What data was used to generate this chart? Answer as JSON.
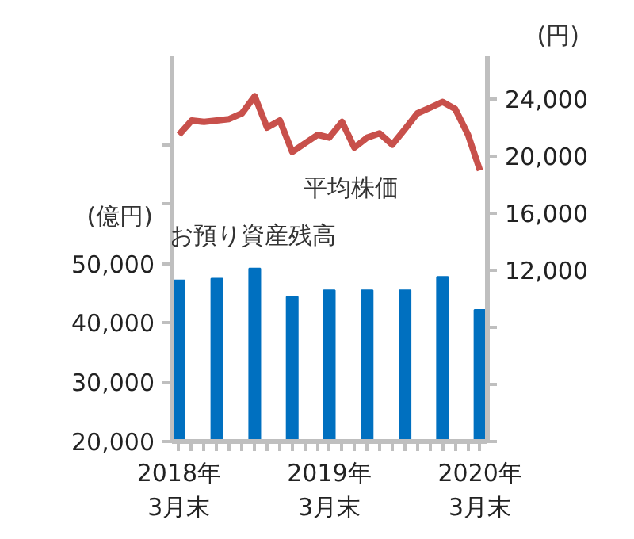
{
  "chart_data": {
    "type": "bar",
    "ylabel": "(億円)",
    "y2label": "(円)",
    "series": [
      {
        "name": "お預り資産残高",
        "color": "#0070c0",
        "x": [
          "2018-03",
          "2018-06",
          "2018-09",
          "2018-12",
          "2019-03",
          "2019-06",
          "2019-09",
          "2019-12",
          "2020-03"
        ],
        "values": [
          47200,
          47500,
          49200,
          44400,
          45500,
          45500,
          45500,
          47800,
          42200
        ]
      },
      {
        "name": "平均株価",
        "type": "line",
        "axis": "y2",
        "color": "#c8504b",
        "x": [
          "2018-03",
          "2018-04",
          "2018-05",
          "2018-06",
          "2018-07",
          "2018-08",
          "2018-09",
          "2018-10",
          "2018-11",
          "2018-12",
          "2019-01",
          "2019-02",
          "2019-03",
          "2019-04",
          "2019-05",
          "2019-06",
          "2019-07",
          "2019-08",
          "2019-09",
          "2019-10",
          "2019-11",
          "2019-12",
          "2020-01",
          "2020-02",
          "2020-03"
        ],
        "values": [
          21500,
          22500,
          22400,
          22500,
          22600,
          23000,
          24200,
          22000,
          22500,
          20300,
          20900,
          21500,
          21300,
          22400,
          20600,
          21300,
          21600,
          20800,
          21900,
          23000,
          23400,
          23800,
          23300,
          21500,
          19000
        ]
      }
    ],
    "xlim": [
      "2018-02-12",
      "2020-03-19"
    ],
    "xticks": [
      {
        "value": "2018-03",
        "label": "2018年\n3月末"
      },
      {
        "value": "2018-04",
        "label": null
      },
      {
        "value": "2018-05",
        "label": null
      },
      {
        "value": "2018-06",
        "label": null
      },
      {
        "value": "2018-07",
        "label": null
      },
      {
        "value": "2018-08",
        "label": null
      },
      {
        "value": "2018-09",
        "label": null
      },
      {
        "value": "2018-10",
        "label": null
      },
      {
        "value": "2018-11",
        "label": null
      },
      {
        "value": "2018-12",
        "label": null
      },
      {
        "value": "2019-01",
        "label": null
      },
      {
        "value": "2019-02",
        "label": null
      },
      {
        "value": "2019-03",
        "label": "2019年\n3月末"
      },
      {
        "value": "2019-04",
        "label": null
      },
      {
        "value": "2019-05",
        "label": null
      },
      {
        "value": "2019-06",
        "label": null
      },
      {
        "value": "2019-07",
        "label": null
      },
      {
        "value": "2019-08",
        "label": null
      },
      {
        "value": "2019-09",
        "label": null
      },
      {
        "value": "2019-10",
        "label": null
      },
      {
        "value": "2019-11",
        "label": null
      },
      {
        "value": "2019-12",
        "label": null
      },
      {
        "value": "2020-01",
        "label": null
      },
      {
        "value": "2020-02",
        "label": null
      },
      {
        "value": "2020-03",
        "label": "2020年\n3月末"
      }
    ],
    "ylim": [
      20000,
      85000
    ],
    "yticks": [
      {
        "value": 20000,
        "label": "20,000"
      },
      {
        "value": 30000,
        "label": "30,000"
      },
      {
        "value": 40000,
        "label": "40,000"
      },
      {
        "value": 50000,
        "label": "50,000"
      },
      {
        "value": 60000,
        "label": null
      },
      {
        "value": 70000,
        "label": null
      }
    ],
    "y2lim": [
      0,
      27000
    ],
    "y2ticks": [
      {
        "value": 0,
        "label": null
      },
      {
        "value": 4000,
        "label": null
      },
      {
        "value": 8000,
        "label": null
      },
      {
        "value": 12000,
        "label": "12,000"
      },
      {
        "value": 16000,
        "label": "16,000"
      },
      {
        "value": 20000,
        "label": "20,000"
      },
      {
        "value": 24000,
        "label": "24,000"
      }
    ],
    "grid": false,
    "legend": false
  }
}
